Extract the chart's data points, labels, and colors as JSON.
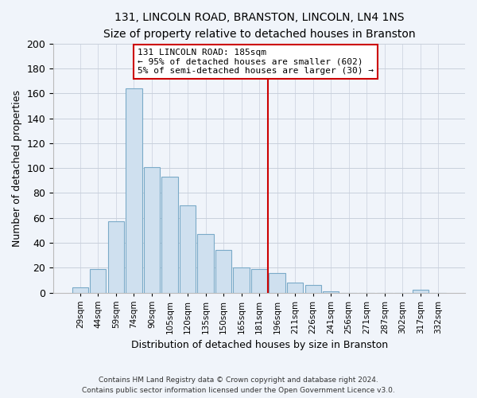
{
  "title": "131, LINCOLN ROAD, BRANSTON, LINCOLN, LN4 1NS",
  "subtitle": "Size of property relative to detached houses in Branston",
  "xlabel": "Distribution of detached houses by size in Branston",
  "ylabel": "Number of detached properties",
  "bar_labels": [
    "29sqm",
    "44sqm",
    "59sqm",
    "74sqm",
    "90sqm",
    "105sqm",
    "120sqm",
    "135sqm",
    "150sqm",
    "165sqm",
    "181sqm",
    "196sqm",
    "211sqm",
    "226sqm",
    "241sqm",
    "256sqm",
    "271sqm",
    "287sqm",
    "302sqm",
    "317sqm",
    "332sqm"
  ],
  "bar_values": [
    4,
    19,
    57,
    164,
    101,
    93,
    70,
    47,
    34,
    20,
    19,
    16,
    8,
    6,
    1,
    0,
    0,
    0,
    0,
    2,
    0
  ],
  "bar_color": "#cfe0ef",
  "bar_edge_color": "#7aaac8",
  "vline_color": "#cc0000",
  "annotation_text": "131 LINCOLN ROAD: 185sqm\n← 95% of detached houses are smaller (602)\n5% of semi-detached houses are larger (30) →",
  "annotation_box_color": "#ffffff",
  "annotation_box_edge": "#cc0000",
  "ylim": [
    0,
    200
  ],
  "yticks": [
    0,
    20,
    40,
    60,
    80,
    100,
    120,
    140,
    160,
    180,
    200
  ],
  "footer_line1": "Contains HM Land Registry data © Crown copyright and database right 2024.",
  "footer_line2": "Contains public sector information licensed under the Open Government Licence v3.0.",
  "bg_color": "#f0f4fa",
  "grid_color": "#c8d0dc"
}
